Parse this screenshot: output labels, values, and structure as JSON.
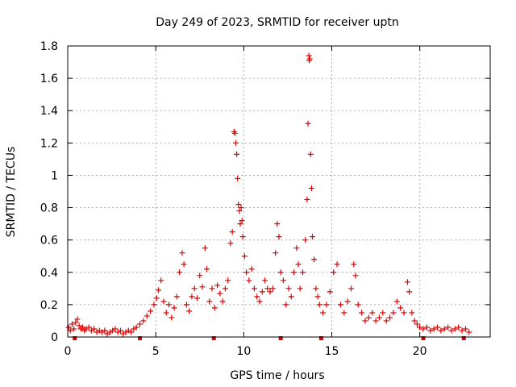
{
  "chart_data": {
    "type": "scatter",
    "title": "Day 249 of 2023, SRMTID for receiver uptn",
    "xlabel": "GPS time / hours",
    "ylabel": "SRMTID / TECUs",
    "xlim": [
      0,
      24
    ],
    "ylim": [
      0,
      1.8
    ],
    "xticks": [
      0,
      5,
      10,
      15,
      20
    ],
    "xtick_labels": [
      "0",
      "5",
      "10",
      "15",
      "20"
    ],
    "yticks": [
      0,
      0.2,
      0.4,
      0.6,
      0.8,
      1,
      1.2,
      1.4,
      1.6,
      1.8
    ],
    "ytick_labels": [
      "0",
      "0.2",
      "0.4",
      "0.6",
      "0.8",
      "1",
      "1.2",
      "1.4",
      "1.6",
      "1.8"
    ],
    "grid": true,
    "marker": "+",
    "colors": {
      "series": "#e00000",
      "grid": "#b0b0b0",
      "axis": "#000000"
    },
    "series": [
      {
        "name": "SRMTID",
        "points": [
          [
            0.05,
            0.06
          ],
          [
            0.15,
            0.04
          ],
          [
            0.25,
            0.08
          ],
          [
            0.35,
            0.05
          ],
          [
            0.45,
            0.09
          ],
          [
            0.55,
            0.11
          ],
          [
            0.65,
            0.07
          ],
          [
            0.75,
            0.05
          ],
          [
            0.85,
            0.06
          ],
          [
            0.95,
            0.04
          ],
          [
            1.05,
            0.05
          ],
          [
            1.2,
            0.06
          ],
          [
            1.35,
            0.04
          ],
          [
            1.5,
            0.05
          ],
          [
            1.65,
            0.03
          ],
          [
            1.8,
            0.04
          ],
          [
            1.95,
            0.03
          ],
          [
            2.1,
            0.04
          ],
          [
            2.25,
            0.02
          ],
          [
            2.4,
            0.03
          ],
          [
            2.55,
            0.04
          ],
          [
            2.7,
            0.05
          ],
          [
            2.85,
            0.03
          ],
          [
            3.0,
            0.04
          ],
          [
            3.15,
            0.02
          ],
          [
            3.3,
            0.03
          ],
          [
            3.45,
            0.04
          ],
          [
            3.6,
            0.03
          ],
          [
            3.75,
            0.05
          ],
          [
            3.9,
            0.06
          ],
          [
            4.1,
            0.08
          ],
          [
            4.3,
            0.1
          ],
          [
            4.5,
            0.13
          ],
          [
            4.7,
            0.16
          ],
          [
            4.9,
            0.2
          ],
          [
            5.05,
            0.24
          ],
          [
            5.15,
            0.29
          ],
          [
            5.3,
            0.35
          ],
          [
            5.45,
            0.22
          ],
          [
            5.6,
            0.15
          ],
          [
            5.75,
            0.2
          ],
          [
            5.9,
            0.12
          ],
          [
            6.05,
            0.18
          ],
          [
            6.2,
            0.25
          ],
          [
            6.35,
            0.4
          ],
          [
            6.5,
            0.52
          ],
          [
            6.6,
            0.45
          ],
          [
            6.75,
            0.2
          ],
          [
            6.9,
            0.16
          ],
          [
            7.05,
            0.25
          ],
          [
            7.2,
            0.3
          ],
          [
            7.35,
            0.24
          ],
          [
            7.5,
            0.38
          ],
          [
            7.65,
            0.31
          ],
          [
            7.8,
            0.55
          ],
          [
            7.9,
            0.42
          ],
          [
            8.05,
            0.22
          ],
          [
            8.2,
            0.3
          ],
          [
            8.35,
            0.18
          ],
          [
            8.5,
            0.32
          ],
          [
            8.65,
            0.27
          ],
          [
            8.8,
            0.22
          ],
          [
            8.95,
            0.3
          ],
          [
            9.1,
            0.35
          ],
          [
            9.25,
            0.58
          ],
          [
            9.35,
            0.65
          ],
          [
            9.45,
            1.27
          ],
          [
            9.5,
            1.26
          ],
          [
            9.55,
            1.2
          ],
          [
            9.6,
            1.13
          ],
          [
            9.65,
            0.98
          ],
          [
            9.7,
            0.82
          ],
          [
            9.75,
            0.78
          ],
          [
            9.8,
            0.7
          ],
          [
            9.85,
            0.8
          ],
          [
            9.9,
            0.72
          ],
          [
            9.95,
            0.62
          ],
          [
            10.05,
            0.5
          ],
          [
            10.15,
            0.4
          ],
          [
            10.3,
            0.35
          ],
          [
            10.45,
            0.42
          ],
          [
            10.6,
            0.3
          ],
          [
            10.75,
            0.25
          ],
          [
            10.9,
            0.22
          ],
          [
            11.05,
            0.28
          ],
          [
            11.2,
            0.35
          ],
          [
            11.35,
            0.3
          ],
          [
            11.5,
            0.28
          ],
          [
            11.65,
            0.3
          ],
          [
            11.8,
            0.52
          ],
          [
            11.9,
            0.7
          ],
          [
            12.0,
            0.62
          ],
          [
            12.1,
            0.4
          ],
          [
            12.25,
            0.35
          ],
          [
            12.4,
            0.2
          ],
          [
            12.55,
            0.3
          ],
          [
            12.7,
            0.25
          ],
          [
            12.85,
            0.4
          ],
          [
            13.0,
            0.55
          ],
          [
            13.1,
            0.45
          ],
          [
            13.2,
            0.3
          ],
          [
            13.35,
            0.4
          ],
          [
            13.5,
            0.6
          ],
          [
            13.6,
            0.85
          ],
          [
            13.65,
            1.32
          ],
          [
            13.7,
            1.74
          ],
          [
            13.72,
            1.71
          ],
          [
            13.75,
            1.72
          ],
          [
            13.8,
            1.13
          ],
          [
            13.85,
            0.92
          ],
          [
            13.9,
            0.62
          ],
          [
            14.0,
            0.48
          ],
          [
            14.1,
            0.3
          ],
          [
            14.2,
            0.25
          ],
          [
            14.3,
            0.2
          ],
          [
            14.5,
            0.15
          ],
          [
            14.7,
            0.2
          ],
          [
            14.9,
            0.28
          ],
          [
            15.1,
            0.4
          ],
          [
            15.3,
            0.45
          ],
          [
            15.5,
            0.2
          ],
          [
            15.7,
            0.15
          ],
          [
            15.9,
            0.22
          ],
          [
            16.1,
            0.3
          ],
          [
            16.25,
            0.45
          ],
          [
            16.35,
            0.38
          ],
          [
            16.5,
            0.2
          ],
          [
            16.7,
            0.15
          ],
          [
            16.9,
            0.1
          ],
          [
            17.1,
            0.12
          ],
          [
            17.3,
            0.15
          ],
          [
            17.5,
            0.1
          ],
          [
            17.7,
            0.12
          ],
          [
            17.9,
            0.15
          ],
          [
            18.1,
            0.1
          ],
          [
            18.3,
            0.12
          ],
          [
            18.5,
            0.15
          ],
          [
            18.7,
            0.22
          ],
          [
            18.9,
            0.18
          ],
          [
            19.1,
            0.15
          ],
          [
            19.3,
            0.34
          ],
          [
            19.4,
            0.28
          ],
          [
            19.55,
            0.15
          ],
          [
            19.7,
            0.1
          ],
          [
            19.85,
            0.08
          ],
          [
            20.0,
            0.06
          ],
          [
            20.2,
            0.05
          ],
          [
            20.4,
            0.06
          ],
          [
            20.6,
            0.04
          ],
          [
            20.8,
            0.05
          ],
          [
            21.0,
            0.06
          ],
          [
            21.2,
            0.04
          ],
          [
            21.4,
            0.05
          ],
          [
            21.6,
            0.06
          ],
          [
            21.8,
            0.04
          ],
          [
            22.0,
            0.05
          ],
          [
            22.2,
            0.06
          ],
          [
            22.4,
            0.04
          ],
          [
            22.6,
            0.05
          ],
          [
            22.8,
            0.03
          ]
        ]
      }
    ],
    "bottom_markers_x": [
      0.4,
      4.1,
      8.3,
      12.1,
      14.4,
      20.2,
      22.5
    ]
  }
}
